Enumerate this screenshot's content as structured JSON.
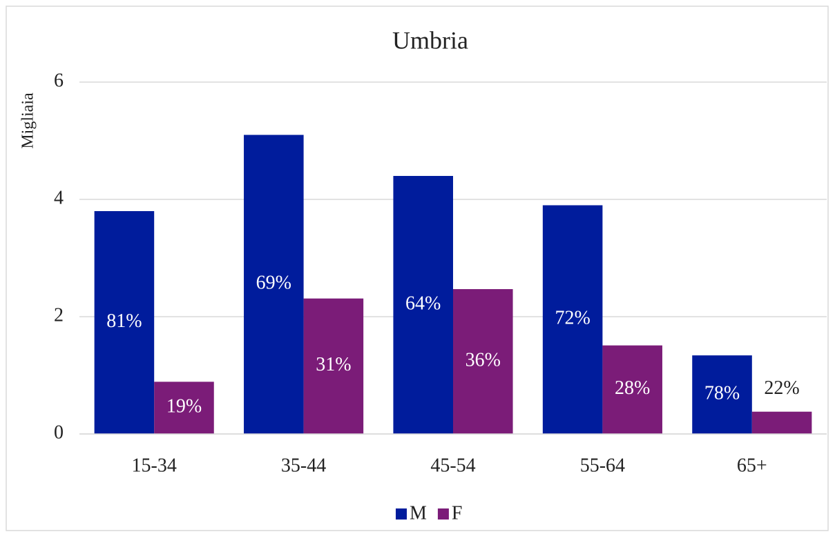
{
  "chart_data": {
    "type": "bar",
    "title": "Umbria",
    "y_label": "Migliaia",
    "categories": [
      "15-34",
      "35-44",
      "45-54",
      "55-64",
      "65+"
    ],
    "series": [
      {
        "name": "M",
        "color": "#001c9c",
        "values": [
          3.8,
          5.1,
          4.4,
          3.9,
          1.34
        ],
        "share_labels": [
          "81%",
          "69%",
          "64%",
          "72%",
          "78%"
        ]
      },
      {
        "name": "F",
        "color": "#7b1c78",
        "values": [
          0.89,
          2.31,
          2.47,
          1.51,
          0.38
        ],
        "share_labels": [
          "19%",
          "31%",
          "36%",
          "28%",
          "22%"
        ]
      }
    ],
    "ylim": [
      0,
      6
    ],
    "yticks": [
      0,
      2,
      4,
      6
    ],
    "grid": true,
    "legend": "bottom"
  }
}
